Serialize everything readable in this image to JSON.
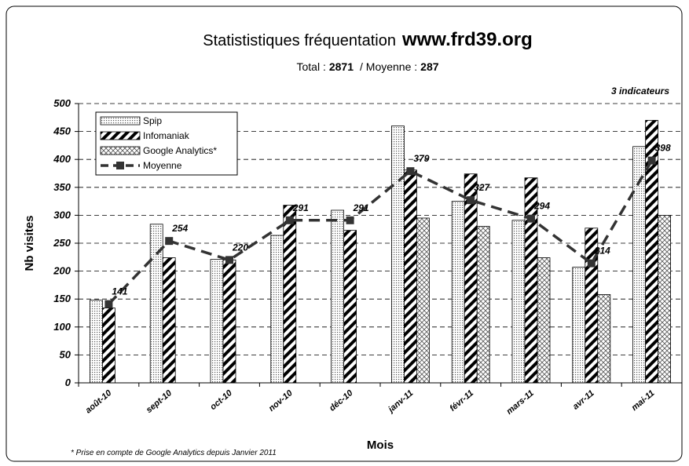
{
  "chart_data": {
    "type": "bar",
    "title": "Statististiques fréquentation",
    "title_site": "www.frd39.org",
    "subtitle_total_label": "Total :",
    "total": 2871,
    "subtitle_avg_label": "/ Moyenne :",
    "average": 287,
    "annotation": "3 indicateurs",
    "footnote": "* Prise en compte de Google Analytics depuis Janvier 2011",
    "x_label": "Mois",
    "y_label": "Nb visites",
    "categories": [
      "août-10",
      "sept-10",
      "oct-10",
      "nov-10",
      "déc-10",
      "janv-11",
      "févr-11",
      "mars-11",
      "avr-11",
      "mai-11"
    ],
    "series": [
      {
        "name": "Spip",
        "color": "#000000",
        "pattern": "dots",
        "values": [
          148,
          284,
          221,
          264,
          309,
          460,
          325,
          291,
          207,
          423
        ]
      },
      {
        "name": "Infomaniak",
        "color": "#000000",
        "pattern": "stripes",
        "values": [
          134,
          224,
          220,
          318,
          273,
          381,
          374,
          367,
          277,
          470
        ]
      },
      {
        "name": "Google Analytics*",
        "color": "#000000",
        "pattern": "crosshatch",
        "values": [
          null,
          null,
          null,
          null,
          null,
          295,
          280,
          224,
          158,
          300
        ]
      },
      {
        "name": "Moyenne",
        "color": "#333333",
        "type": "line",
        "values": [
          141,
          254,
          220,
          291,
          291,
          379,
          327,
          294,
          214,
          398
        ]
      }
    ],
    "ylim": [
      0,
      500
    ],
    "yticks": [
      0,
      50,
      100,
      150,
      200,
      250,
      300,
      350,
      400,
      450,
      500
    ],
    "grid": true,
    "legend": "top-left"
  }
}
